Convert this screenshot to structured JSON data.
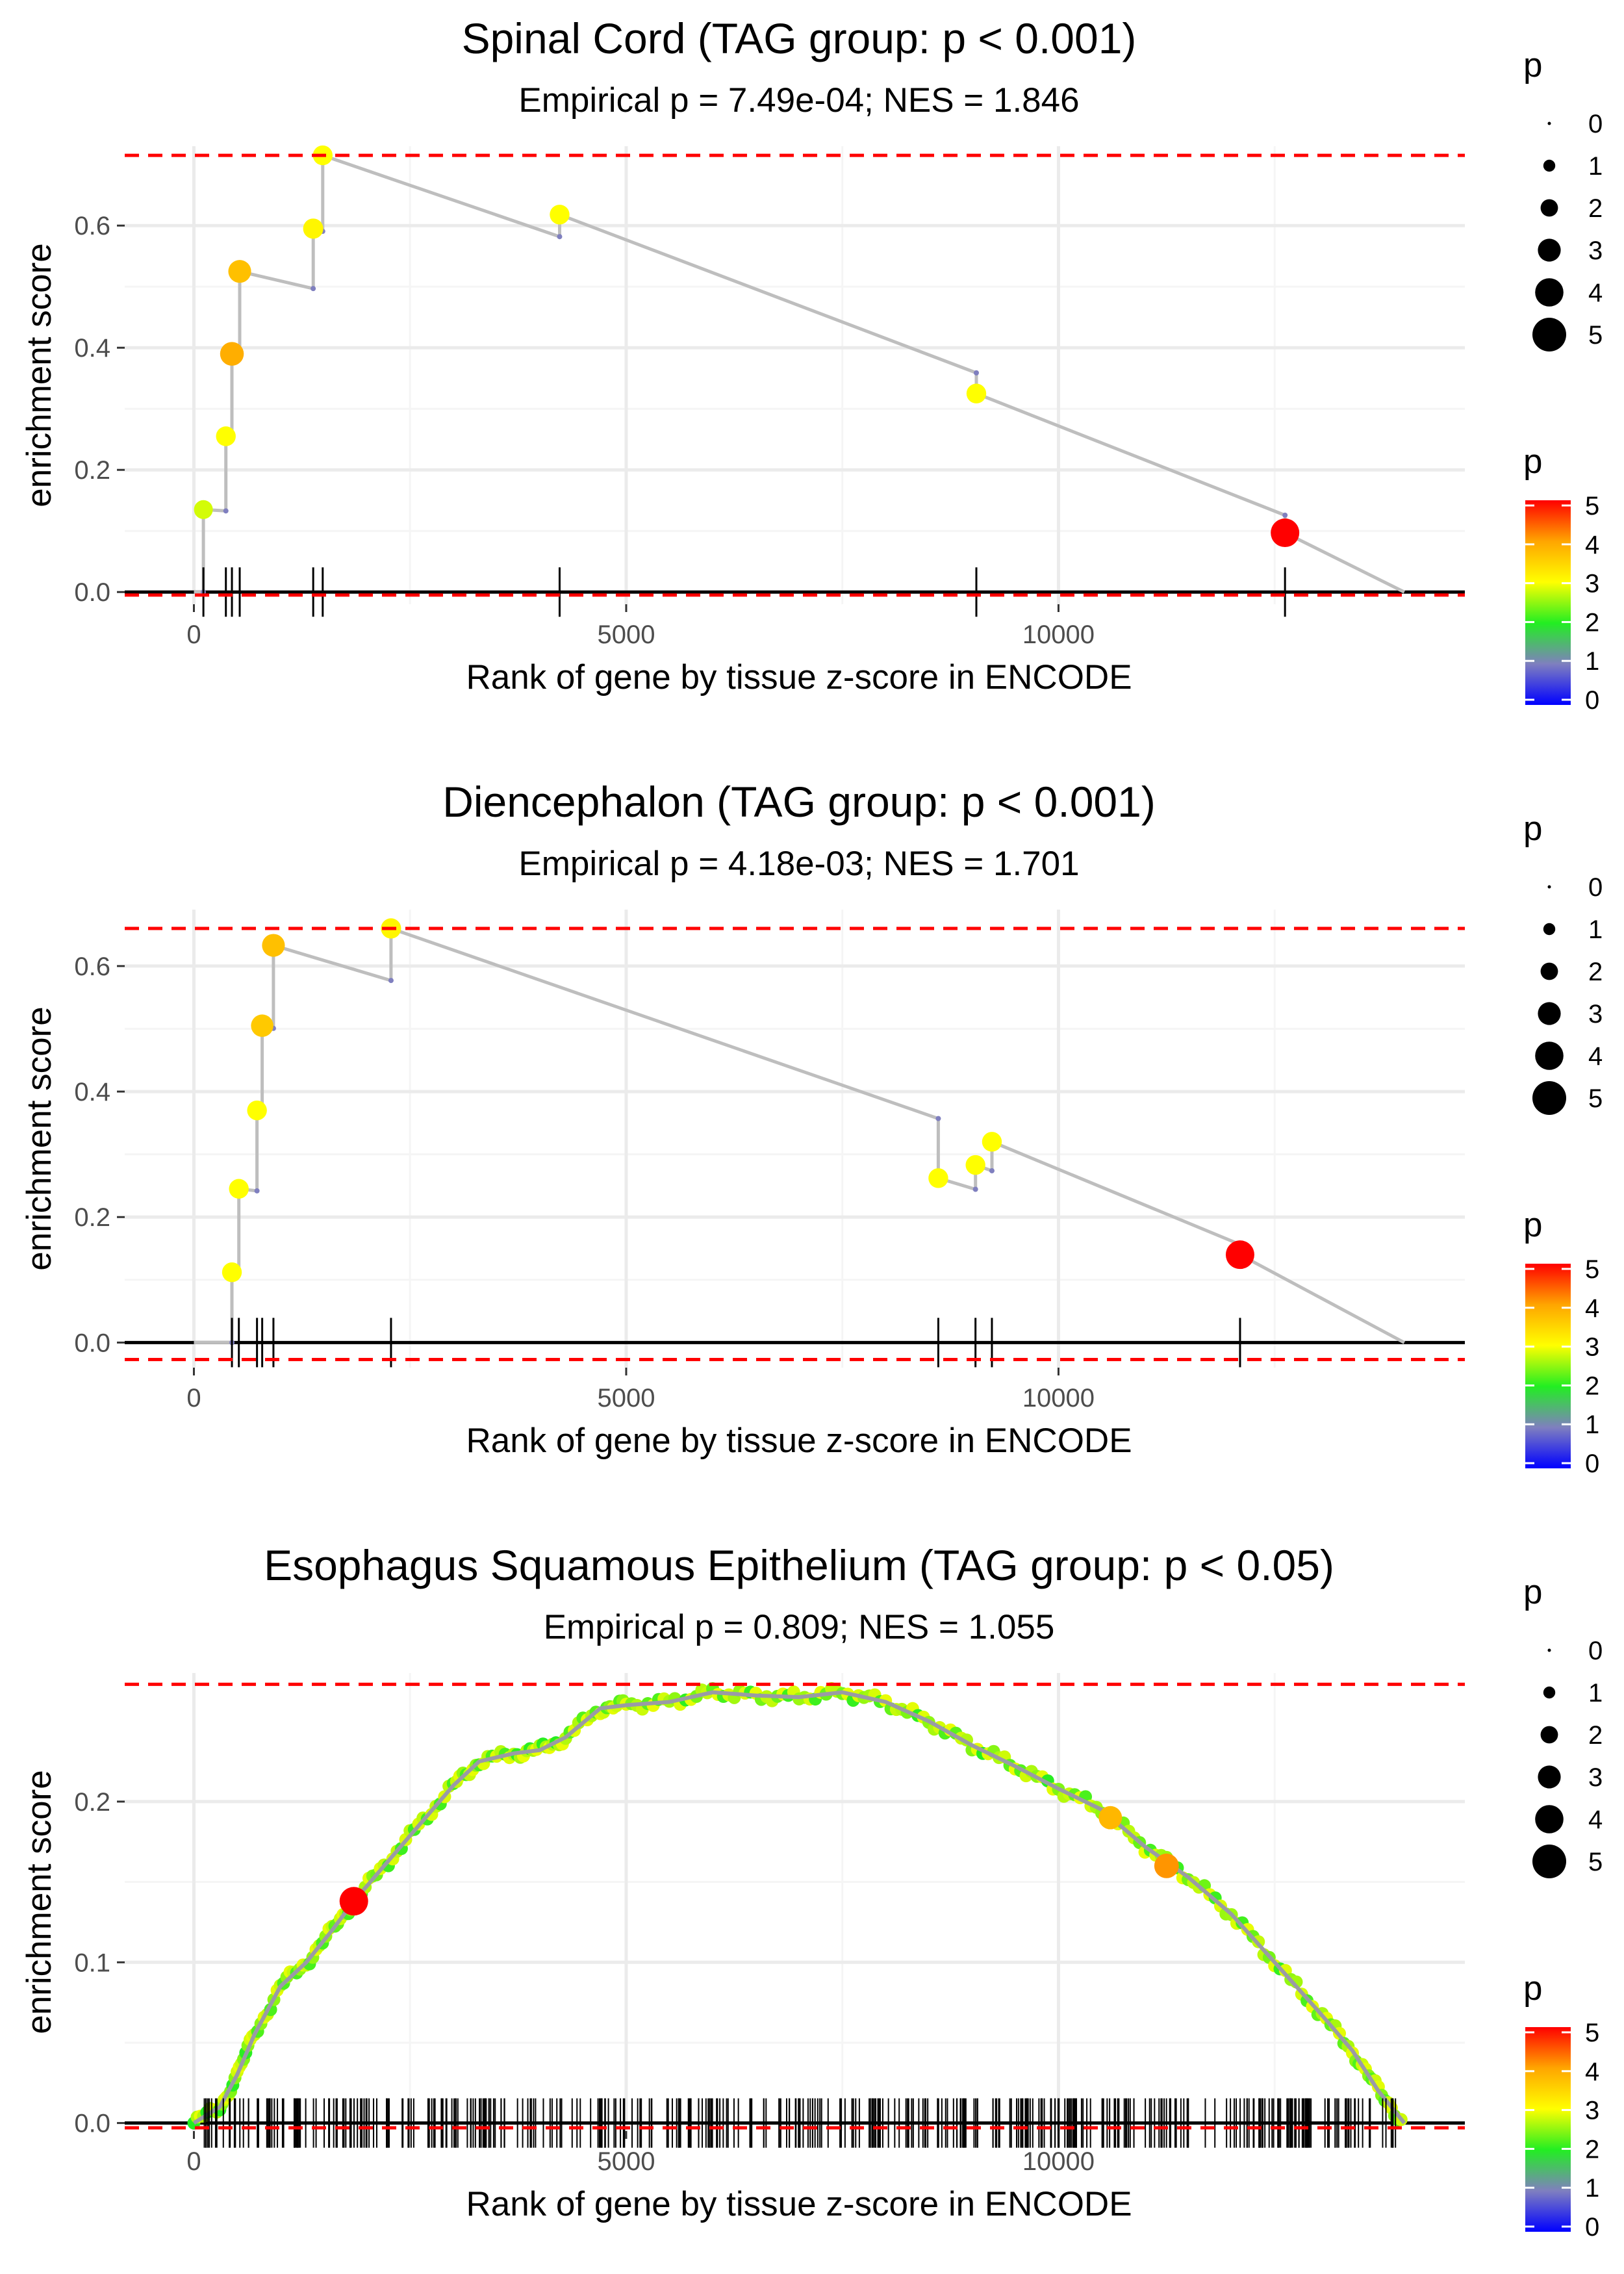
{
  "chart_data": [
    {
      "type": "line",
      "title": "Spinal Cord (TAG group: p < 0.001)",
      "subtitle": "Empirical p = 7.49e-04; NES = 1.846",
      "xlabel": "Rank of gene by tissue z-score in ENCODE",
      "ylabel": "enrichment score",
      "xlim": [
        -800,
        14700
      ],
      "ylim": [
        -0.02,
        0.73
      ],
      "x_ticks": [
        0,
        5000,
        10000
      ],
      "x_tick_labels": [
        "0",
        "5000",
        "10000"
      ],
      "y_ticks": [
        0.0,
        0.2,
        0.4,
        0.6
      ],
      "y_tick_labels": [
        "0.0",
        "0.2",
        "0.4",
        "0.6"
      ],
      "max_es": 0.715,
      "min_es": -0.005,
      "hits": [
        {
          "rank": 110,
          "es": 0.135,
          "p": 2.8
        },
        {
          "rank": 370,
          "es": 0.255,
          "p": 3.0
        },
        {
          "rank": 440,
          "es": 0.39,
          "p": 3.9
        },
        {
          "rank": 530,
          "es": 0.525,
          "p": 3.7
        },
        {
          "rank": 1380,
          "es": 0.595,
          "p": 3.1
        },
        {
          "rank": 1490,
          "es": 0.715,
          "p": 3.0
        },
        {
          "rank": 4230,
          "es": 0.618,
          "p": 3.0
        },
        {
          "rank": 9050,
          "es": 0.325,
          "p": 3.0
        },
        {
          "rank": 12620,
          "es": 0.097,
          "p": 5.0
        }
      ],
      "end_rank": 14000,
      "dense": false,
      "size_legend": {
        "title": "p",
        "labels": [
          "0",
          "1",
          "2",
          "3",
          "4",
          "5"
        ]
      },
      "color_legend": {
        "title": "p",
        "labels": [
          "0",
          "1",
          "2",
          "3",
          "4",
          "5"
        ]
      }
    },
    {
      "type": "line",
      "title": "Diencephalon (TAG group: p < 0.001)",
      "subtitle": "Empirical p = 4.18e-03; NES = 1.701",
      "xlabel": "Rank of gene by tissue z-score in ENCODE",
      "ylabel": "enrichment score",
      "xlim": [
        -800,
        14700
      ],
      "ylim": [
        -0.04,
        0.69
      ],
      "x_ticks": [
        0,
        5000,
        10000
      ],
      "x_tick_labels": [
        "0",
        "5000",
        "10000"
      ],
      "y_ticks": [
        0.0,
        0.2,
        0.4,
        0.6
      ],
      "y_tick_labels": [
        "0.0",
        "0.2",
        "0.4",
        "0.6"
      ],
      "max_es": 0.66,
      "min_es": -0.027,
      "hits": [
        {
          "rank": 440,
          "es": 0.112,
          "p": 3.0
        },
        {
          "rank": 520,
          "es": 0.245,
          "p": 3.0
        },
        {
          "rank": 730,
          "es": 0.37,
          "p": 3.0
        },
        {
          "rank": 790,
          "es": 0.505,
          "p": 3.6
        },
        {
          "rank": 920,
          "es": 0.633,
          "p": 3.7
        },
        {
          "rank": 2280,
          "es": 0.66,
          "p": 3.1
        },
        {
          "rank": 8610,
          "es": 0.262,
          "p": 3.0
        },
        {
          "rank": 9040,
          "es": 0.283,
          "p": 3.0
        },
        {
          "rank": 9230,
          "es": 0.32,
          "p": 3.0
        },
        {
          "rank": 12100,
          "es": 0.14,
          "p": 5.0
        }
      ],
      "end_rank": 14000,
      "dense": false,
      "size_legend": {
        "title": "p",
        "labels": [
          "0",
          "1",
          "2",
          "3",
          "4",
          "5"
        ]
      },
      "color_legend": {
        "title": "p",
        "labels": [
          "0",
          "1",
          "2",
          "3",
          "4",
          "5"
        ]
      }
    },
    {
      "type": "line",
      "title": "Esophagus Squamous Epithelium (TAG group: p < 0.05)",
      "subtitle": "Empirical p = 0.809; NES = 1.055",
      "xlabel": "Rank of gene by tissue z-score in ENCODE",
      "ylabel": "enrichment score",
      "xlim": [
        -800,
        14700
      ],
      "ylim": [
        -0.005,
        0.28
      ],
      "x_ticks": [
        0,
        5000,
        10000
      ],
      "x_tick_labels": [
        "0",
        "5000",
        "10000"
      ],
      "y_ticks": [
        0.0,
        0.1,
        0.2
      ],
      "y_tick_labels": [
        "0.0",
        "0.1",
        "0.2"
      ],
      "max_es": 0.273,
      "min_es": -0.003,
      "curve": [
        {
          "rank": 0,
          "es": 0.0
        },
        {
          "rank": 300,
          "es": 0.01
        },
        {
          "rank": 500,
          "es": 0.03
        },
        {
          "rank": 700,
          "es": 0.055
        },
        {
          "rank": 1000,
          "es": 0.085
        },
        {
          "rank": 1300,
          "es": 0.1
        },
        {
          "rank": 1600,
          "es": 0.12
        },
        {
          "rank": 1850,
          "es": 0.138
        },
        {
          "rank": 2200,
          "es": 0.16
        },
        {
          "rank": 2600,
          "es": 0.185
        },
        {
          "rank": 3000,
          "es": 0.21
        },
        {
          "rank": 3300,
          "es": 0.225
        },
        {
          "rank": 3700,
          "es": 0.23
        },
        {
          "rank": 4000,
          "es": 0.232
        },
        {
          "rank": 4300,
          "es": 0.24
        },
        {
          "rank": 4700,
          "es": 0.258
        },
        {
          "rank": 5000,
          "es": 0.26
        },
        {
          "rank": 5500,
          "es": 0.262
        },
        {
          "rank": 6000,
          "es": 0.268
        },
        {
          "rank": 6500,
          "es": 0.266
        },
        {
          "rank": 7000,
          "es": 0.265
        },
        {
          "rank": 7500,
          "es": 0.268
        },
        {
          "rank": 8000,
          "es": 0.262
        },
        {
          "rank": 8500,
          "es": 0.25
        },
        {
          "rank": 9000,
          "es": 0.235
        },
        {
          "rank": 9500,
          "es": 0.222
        },
        {
          "rank": 10000,
          "es": 0.208
        },
        {
          "rank": 10500,
          "es": 0.195
        },
        {
          "rank": 11000,
          "es": 0.172
        },
        {
          "rank": 11500,
          "es": 0.153
        },
        {
          "rank": 12000,
          "es": 0.13
        },
        {
          "rank": 12500,
          "es": 0.1
        },
        {
          "rank": 13000,
          "es": 0.07
        },
        {
          "rank": 13400,
          "es": 0.045
        },
        {
          "rank": 13700,
          "es": 0.02
        },
        {
          "rank": 14000,
          "es": 0.0
        }
      ],
      "highlight_hits": [
        {
          "rank": 1850,
          "es": 0.138,
          "p": 5.0
        },
        {
          "rank": 10600,
          "es": 0.19,
          "p": 3.8
        },
        {
          "rank": 11250,
          "es": 0.16,
          "p": 4.1
        }
      ],
      "hit_range": [
        120,
        13950
      ],
      "hit_count": 420,
      "end_rank": 14000,
      "dense": true,
      "size_legend": {
        "title": "p",
        "labels": [
          "0",
          "1",
          "2",
          "3",
          "4",
          "5"
        ]
      },
      "color_legend": {
        "title": "p",
        "labels": [
          "0",
          "1",
          "2",
          "3",
          "4",
          "5"
        ]
      }
    }
  ],
  "colors": {
    "line": "#bebebe",
    "dashed": "#ff0000",
    "grid": "#ebebeb",
    "axis": "#000000",
    "scale_low": "#0000ff",
    "scale_mid1": "#7f7fbf",
    "scale_mid2": "#22ee22",
    "scale_mid3": "#ffff00",
    "scale_high": "#ff0000"
  }
}
